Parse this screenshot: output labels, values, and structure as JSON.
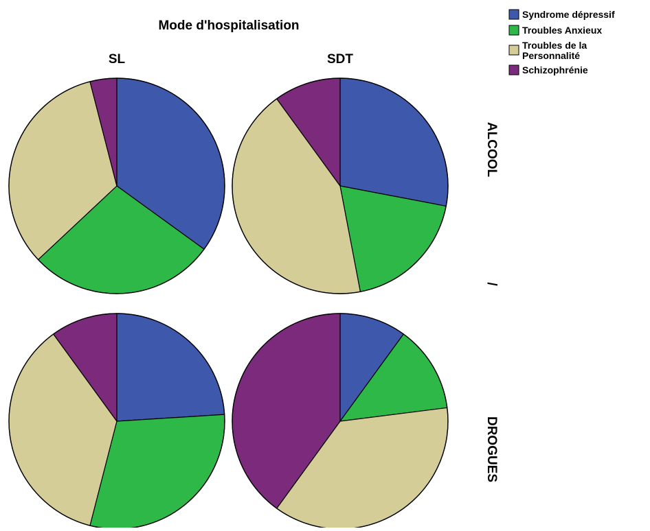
{
  "chart_data": {
    "type": "pie",
    "title": "Mode d'hospitalisation",
    "column_labels": [
      "SL",
      "SDT"
    ],
    "row_labels": [
      "ALCOOL",
      "/",
      "DROGUES"
    ],
    "legend_position": "top-right",
    "categories": [
      "Syndrome dépressif",
      "Troubles Anxieux",
      "Troubles de la Personnalité",
      "Schizophrénie"
    ],
    "legend": [
      {
        "label": "Syndrome dépressif",
        "color": "#3e58ac"
      },
      {
        "label": "Troubles Anxieux",
        "color": "#2eb848"
      },
      {
        "label": "Troubles de la Personnalité",
        "color": "#d4cd98"
      },
      {
        "label": "Schizophrénie",
        "color": "#7b2a7c"
      }
    ],
    "panels": [
      {
        "row": "ALCOOL",
        "column": "SL",
        "values": [
          35.0,
          28.0,
          33.0,
          4.0
        ]
      },
      {
        "row": "ALCOOL",
        "column": "SDT",
        "values": [
          28.0,
          19.0,
          43.0,
          10.0
        ]
      },
      {
        "row": "DROGUES",
        "column": "SL",
        "values": [
          24.0,
          30.0,
          36.0,
          10.0
        ]
      },
      {
        "row": "DROGUES",
        "column": "SDT",
        "values": [
          10.0,
          13.0,
          37.0,
          40.0
        ]
      }
    ]
  }
}
